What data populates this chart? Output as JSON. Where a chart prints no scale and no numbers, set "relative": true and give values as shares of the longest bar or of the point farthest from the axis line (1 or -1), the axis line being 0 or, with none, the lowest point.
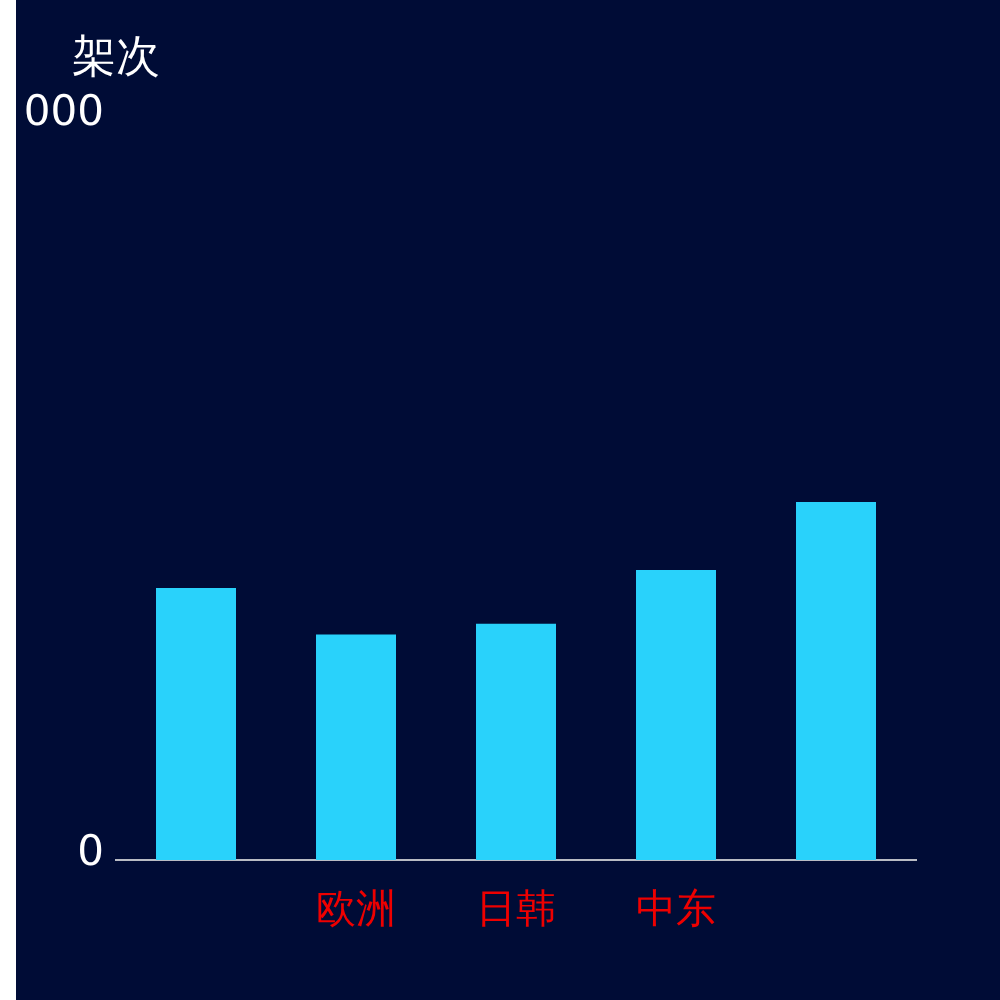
{
  "chart_data": {
    "type": "bar",
    "relative": true,
    "categories": [
      null,
      "欧洲",
      "日韩",
      "中东",
      null
    ],
    "values": [
      0.76,
      0.63,
      0.66,
      0.81,
      1
    ],
    "color": "#29d2fb",
    "annotations": [
      "架次",
      "000",
      "0"
    ]
  }
}
